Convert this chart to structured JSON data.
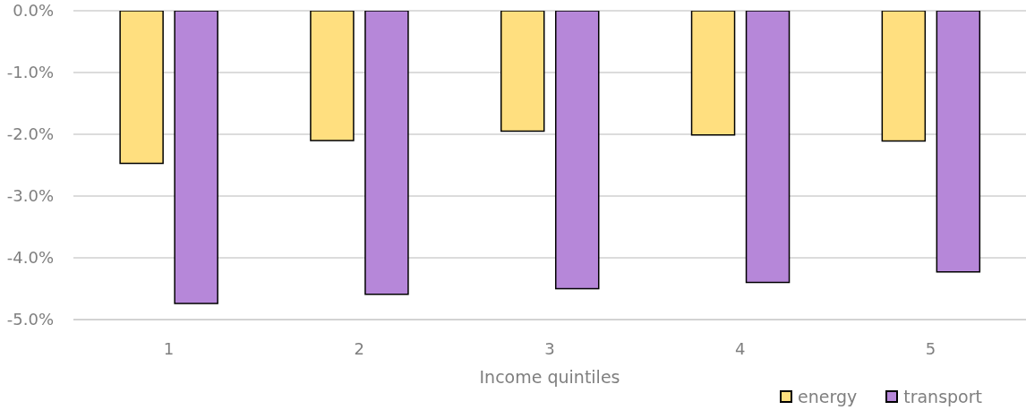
{
  "chart_data": {
    "type": "bar",
    "xlabel": "Income quintiles",
    "categories": [
      "1",
      "2",
      "3",
      "4",
      "5"
    ],
    "series": [
      {
        "name": "energy",
        "color": "#ffdf7f",
        "values": [
          -2.47,
          -2.1,
          -1.95,
          -2.01,
          -2.11
        ]
      },
      {
        "name": "transport",
        "color": "#b687d9",
        "values": [
          -4.74,
          -4.59,
          -4.5,
          -4.4,
          -4.23
        ]
      }
    ],
    "ylim": [
      -5,
      0
    ],
    "yticks": [
      {
        "value": -5,
        "label": "-5.0%"
      },
      {
        "value": -4,
        "label": "-4.0%"
      },
      {
        "value": -3,
        "label": "-3.0%"
      },
      {
        "value": -2,
        "label": "-2.0%"
      },
      {
        "value": -1,
        "label": "-1.0%"
      },
      {
        "value": 0,
        "label": "0.0%"
      }
    ],
    "grid": "y",
    "legend": "bottom right"
  }
}
